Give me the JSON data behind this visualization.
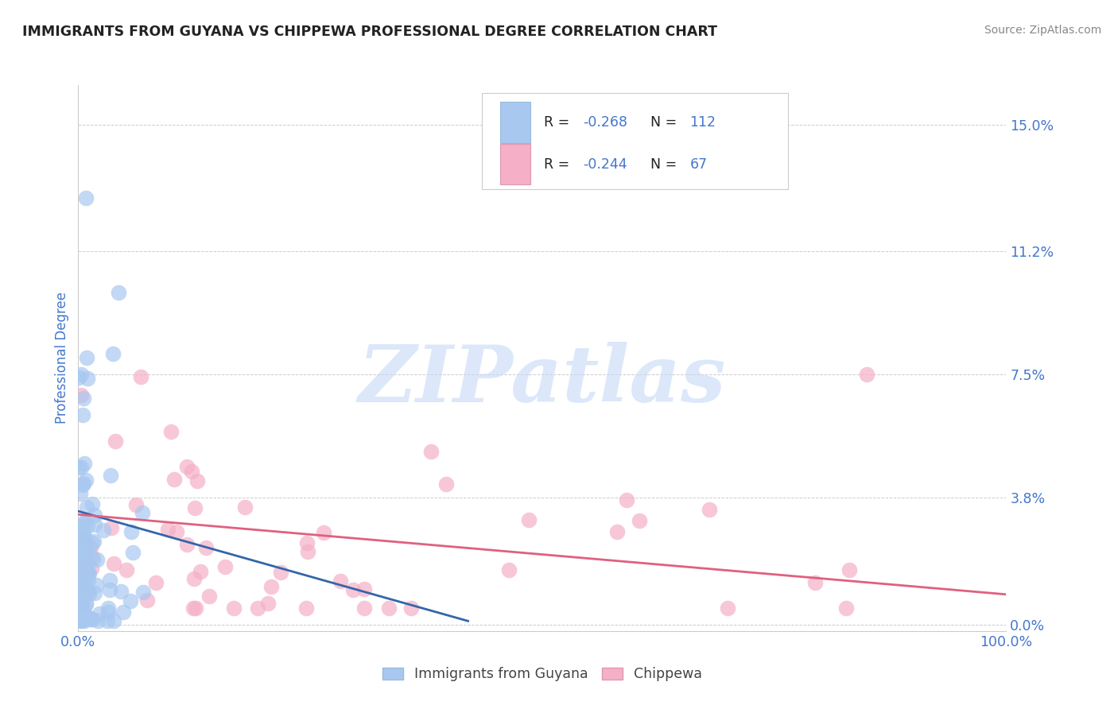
{
  "title": "IMMIGRANTS FROM GUYANA VS CHIPPEWA PROFESSIONAL DEGREE CORRELATION CHART",
  "source": "Source: ZipAtlas.com",
  "ylabel": "Professional Degree",
  "xlim": [
    0.0,
    1.0
  ],
  "ylim": [
    -0.002,
    0.162
  ],
  "yticks": [
    0.0,
    0.038,
    0.075,
    0.112,
    0.15
  ],
  "ytick_labels": [
    "0.0%",
    "3.8%",
    "7.5%",
    "11.2%",
    "15.0%"
  ],
  "xtick_labels": [
    "0.0%",
    "100.0%"
  ],
  "watermark_text": "ZIPatlas",
  "series": [
    {
      "name": "Immigrants from Guyana",
      "R": "-0.268",
      "N": "112",
      "color": "#a8c8f0",
      "line_color": "#3366aa",
      "trend_x": [
        0.0,
        0.42
      ],
      "trend_y": [
        0.034,
        0.001
      ]
    },
    {
      "name": "Chippewa",
      "R": "-0.244",
      "N": "67",
      "color": "#f5b0c8",
      "line_color": "#e06080",
      "trend_x": [
        0.0,
        1.0
      ],
      "trend_y": [
        0.033,
        0.009
      ]
    }
  ],
  "background_color": "#ffffff",
  "grid_color": "#cccccc",
  "title_color": "#222222",
  "axis_color": "#4477cc",
  "legend_text_color": "#222222",
  "legend_value_color": "#4477cc"
}
